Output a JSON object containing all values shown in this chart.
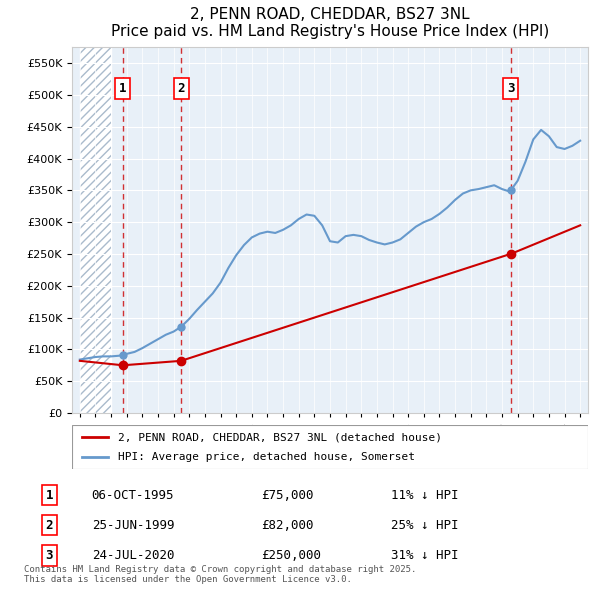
{
  "title": "2, PENN ROAD, CHEDDAR, BS27 3NL",
  "subtitle": "Price paid vs. HM Land Registry's House Price Index (HPI)",
  "ylabel_ticks": [
    "£0",
    "£50K",
    "£100K",
    "£150K",
    "£200K",
    "£250K",
    "£300K",
    "£350K",
    "£400K",
    "£450K",
    "£500K",
    "£550K"
  ],
  "ytick_values": [
    0,
    50000,
    100000,
    150000,
    200000,
    250000,
    300000,
    350000,
    400000,
    450000,
    500000,
    550000
  ],
  "ylim": [
    0,
    575000
  ],
  "sale_dates": [
    1995.76,
    1999.48,
    2020.56
  ],
  "sale_prices": [
    75000,
    82000,
    250000
  ],
  "sale_labels": [
    "1",
    "2",
    "3"
  ],
  "legend_property": "2, PENN ROAD, CHEDDAR, BS27 3NL (detached house)",
  "legend_hpi": "HPI: Average price, detached house, Somerset",
  "table_rows": [
    [
      "1",
      "06-OCT-1995",
      "£75,000",
      "11% ↓ HPI"
    ],
    [
      "2",
      "25-JUN-1999",
      "£82,000",
      "25% ↓ HPI"
    ],
    [
      "3",
      "24-JUL-2020",
      "£250,000",
      "31% ↓ HPI"
    ]
  ],
  "footnote": "Contains HM Land Registry data © Crown copyright and database right 2025.\nThis data is licensed under the Open Government Licence v3.0.",
  "hpi_color": "#6699cc",
  "property_color": "#cc0000",
  "hatch_color": "#ccddee",
  "background_color": "#e8f0f8"
}
